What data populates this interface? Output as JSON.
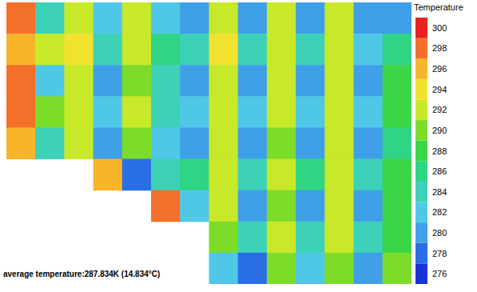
{
  "chart_data": {
    "type": "heatmap",
    "annotation": "average temperature:287.834K (14.834°C)",
    "tick_labels": false,
    "cells": [
      [
        298,
        284,
        293,
        282,
        292,
        283,
        281,
        293,
        281,
        293,
        281,
        292,
        281,
        280
      ],
      [
        297,
        292,
        294,
        285,
        293,
        286,
        284,
        294,
        284,
        293,
        285,
        293,
        283,
        286
      ],
      [
        299,
        283,
        292,
        281,
        291,
        284,
        281,
        293,
        281,
        292,
        281,
        292,
        281,
        288
      ],
      [
        298,
        290,
        293,
        283,
        292,
        285,
        283,
        293,
        283,
        293,
        283,
        293,
        283,
        288
      ],
      [
        297,
        284,
        292,
        281,
        291,
        283,
        281,
        292,
        281,
        291,
        281,
        292,
        281,
        287
      ],
      [
        null,
        null,
        null,
        296,
        279,
        285,
        287,
        292,
        285,
        292,
        286,
        292,
        285,
        289
      ],
      [
        null,
        null,
        null,
        null,
        null,
        298,
        282,
        292,
        281,
        291,
        281,
        292,
        281,
        288
      ],
      [
        null,
        null,
        null,
        null,
        null,
        null,
        null,
        290,
        285,
        293,
        285,
        292,
        284,
        289
      ],
      [
        null,
        null,
        null,
        null,
        null,
        null,
        null,
        282,
        278,
        290,
        282,
        290,
        281,
        290
      ]
    ],
    "colorbar": {
      "title": "Temperature",
      "range": [
        275,
        301
      ],
      "ticks": [
        276,
        278,
        280,
        282,
        284,
        286,
        288,
        290,
        292,
        294,
        296,
        298,
        300
      ],
      "colors": [
        "#1a33d9",
        "#2a6ee6",
        "#3fa0e8",
        "#4fc8e8",
        "#3dd1b8",
        "#2fd485",
        "#3ad645",
        "#7ddc2a",
        "#c8e82a",
        "#f2e230",
        "#f7b52a",
        "#f4702a",
        "#e62222"
      ]
    }
  }
}
